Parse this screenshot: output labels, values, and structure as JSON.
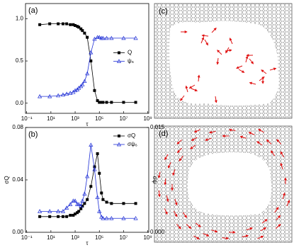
{
  "chart_data": [
    {
      "type": "line",
      "label": "(a)",
      "xlabel": "τ",
      "xscale": "log",
      "legend": "right",
      "xlim": [
        0.08,
        1200000000
      ],
      "xticks": [
        {
          "value": 0.1,
          "label": "10⁻¹"
        },
        {
          "value": 10,
          "label": "10¹"
        },
        {
          "value": 1000,
          "label": "10³"
        },
        {
          "value": 100000,
          "label": "10⁵"
        },
        {
          "value": 10000000,
          "label": "10⁷"
        },
        {
          "value": 1000000000,
          "label": "10⁹"
        }
      ],
      "ylim": [
        -0.12,
        1.18
      ],
      "yticks": [
        {
          "value": 0,
          "label": "0.0"
        },
        {
          "value": 0.5,
          "label": "0.5"
        },
        {
          "value": 1,
          "label": "1.0"
        }
      ],
      "x": [
        1.2,
        8,
        40,
        100,
        200,
        400,
        700,
        1000,
        1500,
        2000,
        3000,
        4000,
        6000,
        10000,
        20000,
        40000,
        70000,
        100000,
        150000,
        200000,
        400000,
        1000000,
        10000000,
        100000000
      ],
      "series": [
        {
          "name": "Q",
          "color": "#000000",
          "marker": "square",
          "values": [
            0.93,
            0.94,
            0.94,
            0.94,
            0.94,
            0.93,
            0.93,
            0.92,
            0.91,
            0.9,
            0.88,
            0.86,
            0.83,
            0.78,
            0.5,
            0.15,
            0.03,
            0.01,
            0.01,
            0.01,
            0.01,
            0.01,
            0.01,
            0.01
          ]
        },
        {
          "name": "ψ₆",
          "color": "#1f2fd6",
          "marker": "triangle",
          "values": [
            0.08,
            0.08,
            0.09,
            0.1,
            0.11,
            0.12,
            0.13,
            0.15,
            0.16,
            0.18,
            0.2,
            0.22,
            0.26,
            0.35,
            0.6,
            0.76,
            0.78,
            0.78,
            0.77,
            0.77,
            0.77,
            0.77,
            0.77,
            0.77
          ]
        }
      ]
    },
    {
      "type": "line",
      "label": "(b)",
      "xlabel": "τ",
      "ylabel": "σQ",
      "y2label": "σψ",
      "xscale": "log",
      "legend": "upper right",
      "xlim": [
        0.08,
        1200000000
      ],
      "xticks": [
        {
          "value": 0.1,
          "label": "10⁻¹"
        },
        {
          "value": 10,
          "label": "10¹"
        },
        {
          "value": 1000,
          "label": "10³"
        },
        {
          "value": 100000,
          "label": "10⁵"
        },
        {
          "value": 10000000,
          "label": "10⁷"
        },
        {
          "value": 1000000000,
          "label": "10⁹"
        }
      ],
      "ylim": [
        0,
        0.08
      ],
      "yticks": [
        {
          "value": 0,
          "label": "0.00"
        },
        0.04,
        0.08
      ],
      "y2lim": [
        0,
        0.015
      ],
      "y2ticks": [
        {
          "value": 0,
          "label": "0.000"
        },
        0.015
      ],
      "x": [
        1.2,
        8,
        40,
        100,
        200,
        400,
        700,
        1000,
        1500,
        2000,
        3000,
        4000,
        6000,
        10000,
        20000,
        40000,
        70000,
        100000,
        150000,
        200000,
        400000,
        1000000,
        10000000,
        100000000
      ],
      "series": [
        {
          "name": "σQ",
          "color": "#000000",
          "marker": "square",
          "values": [
            0.012,
            0.012,
            0.012,
            0.012,
            0.012,
            0.013,
            0.013,
            0.014,
            0.015,
            0.016,
            0.018,
            0.02,
            0.022,
            0.025,
            0.035,
            0.05,
            0.06,
            0.045,
            0.03,
            0.025,
            0.023,
            0.022,
            0.022,
            0.022
          ]
        },
        {
          "name": "σψ₆",
          "color": "#1f2fd6",
          "marker": "triangle",
          "axis": "y2",
          "values": [
            0.003,
            0.003,
            0.003,
            0.003,
            0.0035,
            0.004,
            0.0045,
            0.0045,
            0.004,
            0.004,
            0.0038,
            0.0045,
            0.0055,
            0.008,
            0.0125,
            0.009,
            0.005,
            0.003,
            0.0022,
            0.002,
            0.002,
            0.002,
            0.002,
            0.002
          ]
        }
      ]
    }
  ],
  "images": [
    {
      "label": "(c)"
    },
    {
      "label": "(d)"
    }
  ]
}
